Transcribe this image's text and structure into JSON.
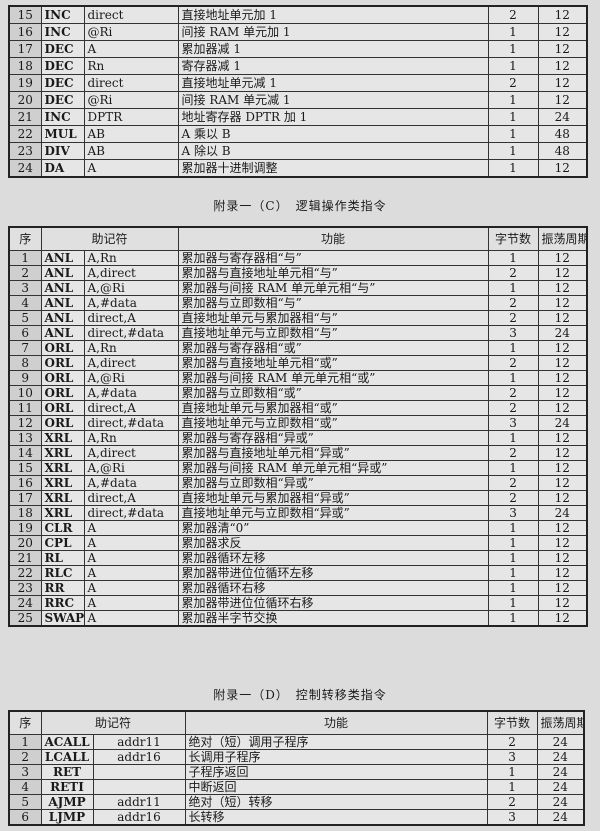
{
  "table_a": {
    "rows": [
      [
        "15",
        "INC",
        "direct",
        "直接地址单元加 1",
        "2",
        "12"
      ],
      [
        "16",
        "INC",
        "@Ri",
        "间接 RAM 单元加 1",
        "1",
        "12"
      ],
      [
        "17",
        "DEC",
        "A",
        "累加器减 1",
        "1",
        "12"
      ],
      [
        "18",
        "DEC",
        "Rn",
        "寄存器减 1",
        "1",
        "12"
      ],
      [
        "19",
        "DEC",
        "direct",
        "直接地址单元减 1",
        "2",
        "12"
      ],
      [
        "20",
        "DEC",
        "@Ri",
        "间接 RAM 单元减 1",
        "1",
        "12"
      ],
      [
        "21",
        "INC",
        "DPTR",
        "地址寄存器 DPTR 加 1",
        "1",
        "24"
      ],
      [
        "22",
        "MUL",
        "AB",
        "A 乘以 B",
        "1",
        "48"
      ],
      [
        "23",
        "DIV",
        "AB",
        "A 除以 B",
        "1",
        "48"
      ],
      [
        "24",
        "DA",
        "A",
        "累加器十进制调整",
        "1",
        "12"
      ]
    ]
  },
  "table_c": {
    "title": "附录一（C）　逻辑操作类指令",
    "headers": [
      "序",
      "助记符",
      "功能",
      "字节数",
      "振荡周期"
    ],
    "rows": [
      [
        "1",
        "ANL",
        "A,Rn",
        "累加器与寄存器相“与”",
        "1",
        "12"
      ],
      [
        "2",
        "ANL",
        "A,direct",
        "累加器与直接地址单元相“与”",
        "2",
        "12"
      ],
      [
        "3",
        "ANL",
        "A,@Ri",
        "累加器与间接 RAM 单元单元相“与”",
        "1",
        "12"
      ],
      [
        "4",
        "ANL",
        "A,#data",
        "累加器与立即数相“与”",
        "2",
        "12"
      ],
      [
        "5",
        "ANL",
        "direct,A",
        "直接地址单元与累加器相“与”",
        "2",
        "12"
      ],
      [
        "6",
        "ANL",
        "direct,#data",
        "直接地址单元与立即数相“与”",
        "3",
        "24"
      ],
      [
        "7",
        "ORL",
        "A,Rn",
        "累加器与寄存器相“或”",
        "1",
        "12"
      ],
      [
        "8",
        "ORL",
        "A,direct",
        "累加器与直接地址单元相“或”",
        "2",
        "12"
      ],
      [
        "9",
        "ORL",
        "A,@Ri",
        "累加器与间接 RAM 单元单元相“或”",
        "1",
        "12"
      ],
      [
        "10",
        "ORL",
        "A,#data",
        "累加器与立即数相“或”",
        "2",
        "12"
      ],
      [
        "11",
        "ORL",
        "direct,A",
        "直接地址单元与累加器相“或”",
        "2",
        "12"
      ],
      [
        "12",
        "ORL",
        "direct,#data",
        "直接地址单元与立即数相“或”",
        "3",
        "24"
      ],
      [
        "13",
        "XRL",
        "A,Rn",
        "累加器与寄存器相“异或”",
        "1",
        "12"
      ],
      [
        "14",
        "XRL",
        "A,direct",
        "累加器与直接地址单元相“异或”",
        "2",
        "12"
      ],
      [
        "15",
        "XRL",
        "A,@Ri",
        "累加器与间接 RAM 单元单元相“异或”",
        "1",
        "12"
      ],
      [
        "16",
        "XRL",
        "A,#data",
        "累加器与立即数相“异或”",
        "2",
        "12"
      ],
      [
        "17",
        "XRL",
        "direct,A",
        "直接地址单元与累加器相“异或”",
        "2",
        "12"
      ],
      [
        "18",
        "XRL",
        "direct,#data",
        "直接地址单元与立即数相“异或”",
        "3",
        "24"
      ],
      [
        "19",
        "CLR",
        "A",
        "累加器清“0”",
        "1",
        "12"
      ],
      [
        "20",
        "CPL",
        "A",
        "累加器求反",
        "1",
        "12"
      ],
      [
        "21",
        "RL",
        "A",
        "累加器循环左移",
        "1",
        "12"
      ],
      [
        "22",
        "RLC",
        "A",
        "累加器带进位位循环左移",
        "1",
        "12"
      ],
      [
        "23",
        "RR",
        "A",
        "累加器循环右移",
        "1",
        "12"
      ],
      [
        "24",
        "RRC",
        "A",
        "累加器带进位位循环右移",
        "1",
        "12"
      ],
      [
        "25",
        "SWAP",
        "A",
        "累加器半字节交换",
        "1",
        "12"
      ]
    ]
  },
  "table_d": {
    "title": "附录一（D）　控制转移类指令",
    "headers": [
      "序",
      "助记符",
      "功能",
      "字节数",
      "振荡周期"
    ],
    "rows": [
      [
        "1",
        "ACALL",
        "addr11",
        "绝对（短）调用子程序",
        "2",
        "24"
      ],
      [
        "2",
        "LCALL",
        "addr16",
        "长调用子程序",
        "3",
        "24"
      ],
      [
        "3",
        "RET",
        "",
        "子程序返回",
        "1",
        "24"
      ],
      [
        "4",
        "RETI",
        "",
        "中断返回",
        "1",
        "24"
      ],
      [
        "5",
        "AJMP",
        "addr11",
        "绝对（短）转移",
        "2",
        "24"
      ],
      [
        "6",
        "LJMP",
        "addr16",
        "长转移",
        "3",
        "24"
      ]
    ]
  }
}
